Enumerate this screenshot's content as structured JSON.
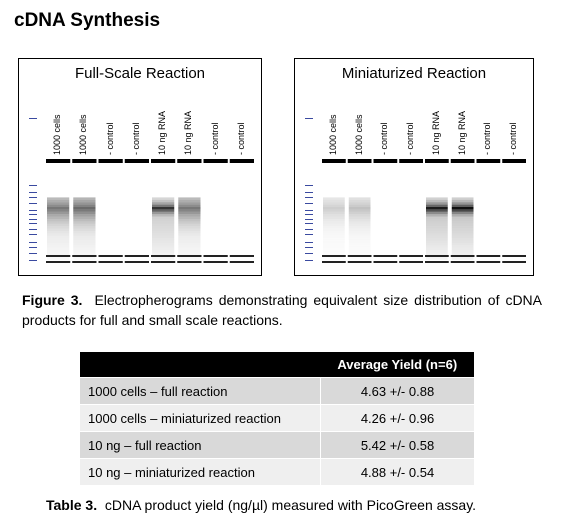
{
  "section_title": "cDNA Synthesis",
  "gels": [
    {
      "title": "Full-Scale Reaction",
      "lanes": [
        "1000 cells",
        "1000 cells",
        "- control",
        "- control",
        "10 ng RNA",
        "10 ng RNA",
        "- control",
        "- control"
      ],
      "lane_intensity": [
        0.55,
        0.6,
        0.0,
        0.0,
        0.85,
        0.55,
        0.0,
        0.0
      ]
    },
    {
      "title": "Miniaturized Reaction",
      "lanes": [
        "1000 cells",
        "1000 cells",
        "- control",
        "- control",
        "10 ng RNA",
        "10 ng RNA",
        "- control",
        "- control"
      ],
      "lane_intensity": [
        0.2,
        0.25,
        0.0,
        0.0,
        0.95,
        1.0,
        0.0,
        0.0
      ]
    }
  ],
  "figure_caption": {
    "label": "Figure 3.",
    "text": "Electropherograms demonstrating equivalent size distribution of cDNA products for full and small scale reactions."
  },
  "table": {
    "header": [
      "",
      "Average Yield (n=6)"
    ],
    "rows": [
      {
        "label": "1000 cells – full reaction",
        "value": "4.63 +/- 0.88"
      },
      {
        "label": "1000 cells – miniaturized reaction",
        "value": "4.26 +/- 0.96"
      },
      {
        "label": "10 ng – full reaction",
        "value": "5.42 +/- 0.58"
      },
      {
        "label": "10 ng – miniaturized reaction",
        "value": "4.88 +/- 0.54"
      }
    ]
  },
  "table_caption": {
    "label": "Table 3.",
    "text": "cDNA product yield (ng/µl) measured with PicoGreen assay."
  }
}
